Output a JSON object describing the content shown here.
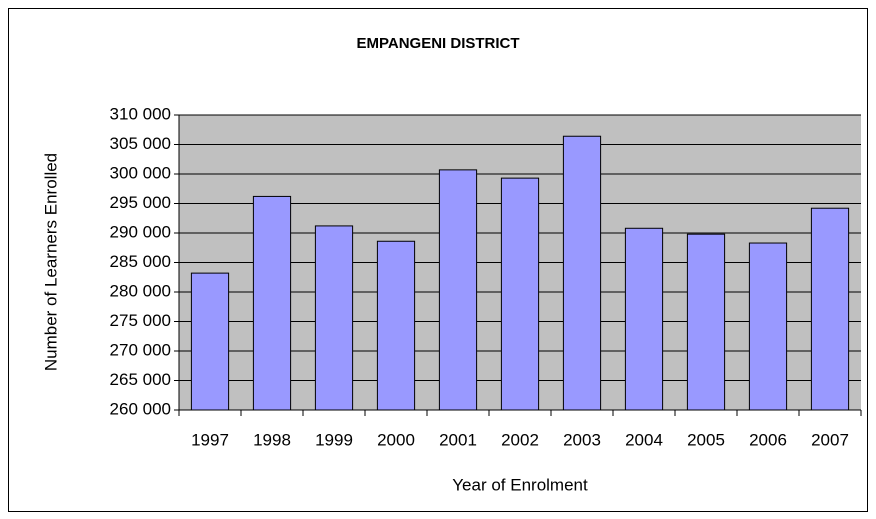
{
  "chart_data": {
    "type": "bar",
    "title": "EMPANGENI DISTRICT",
    "x_label": "Year of Enrolment",
    "y_label": "Number of Learners Enrolled",
    "categories": [
      "1997",
      "1998",
      "1999",
      "2000",
      "2001",
      "2002",
      "2003",
      "2004",
      "2005",
      "2006",
      "2007"
    ],
    "values": [
      283200,
      296200,
      291200,
      288600,
      300700,
      299300,
      306400,
      290800,
      289800,
      288300,
      294200
    ],
    "color": "#9999ff",
    "ylim": [
      260000,
      310000
    ],
    "yticks": [
      {
        "value": 260000,
        "label": "260 000"
      },
      {
        "value": 265000,
        "label": "265 000"
      },
      {
        "value": 270000,
        "label": "270 000"
      },
      {
        "value": 275000,
        "label": "275 000"
      },
      {
        "value": 280000,
        "label": "280 000"
      },
      {
        "value": 285000,
        "label": "285 000"
      },
      {
        "value": 290000,
        "label": "290 000"
      },
      {
        "value": 295000,
        "label": "295 000"
      },
      {
        "value": 300000,
        "label": "300 000"
      },
      {
        "value": 305000,
        "label": "305 000"
      },
      {
        "value": 310000,
        "label": "310 000"
      }
    ],
    "grid": true
  }
}
